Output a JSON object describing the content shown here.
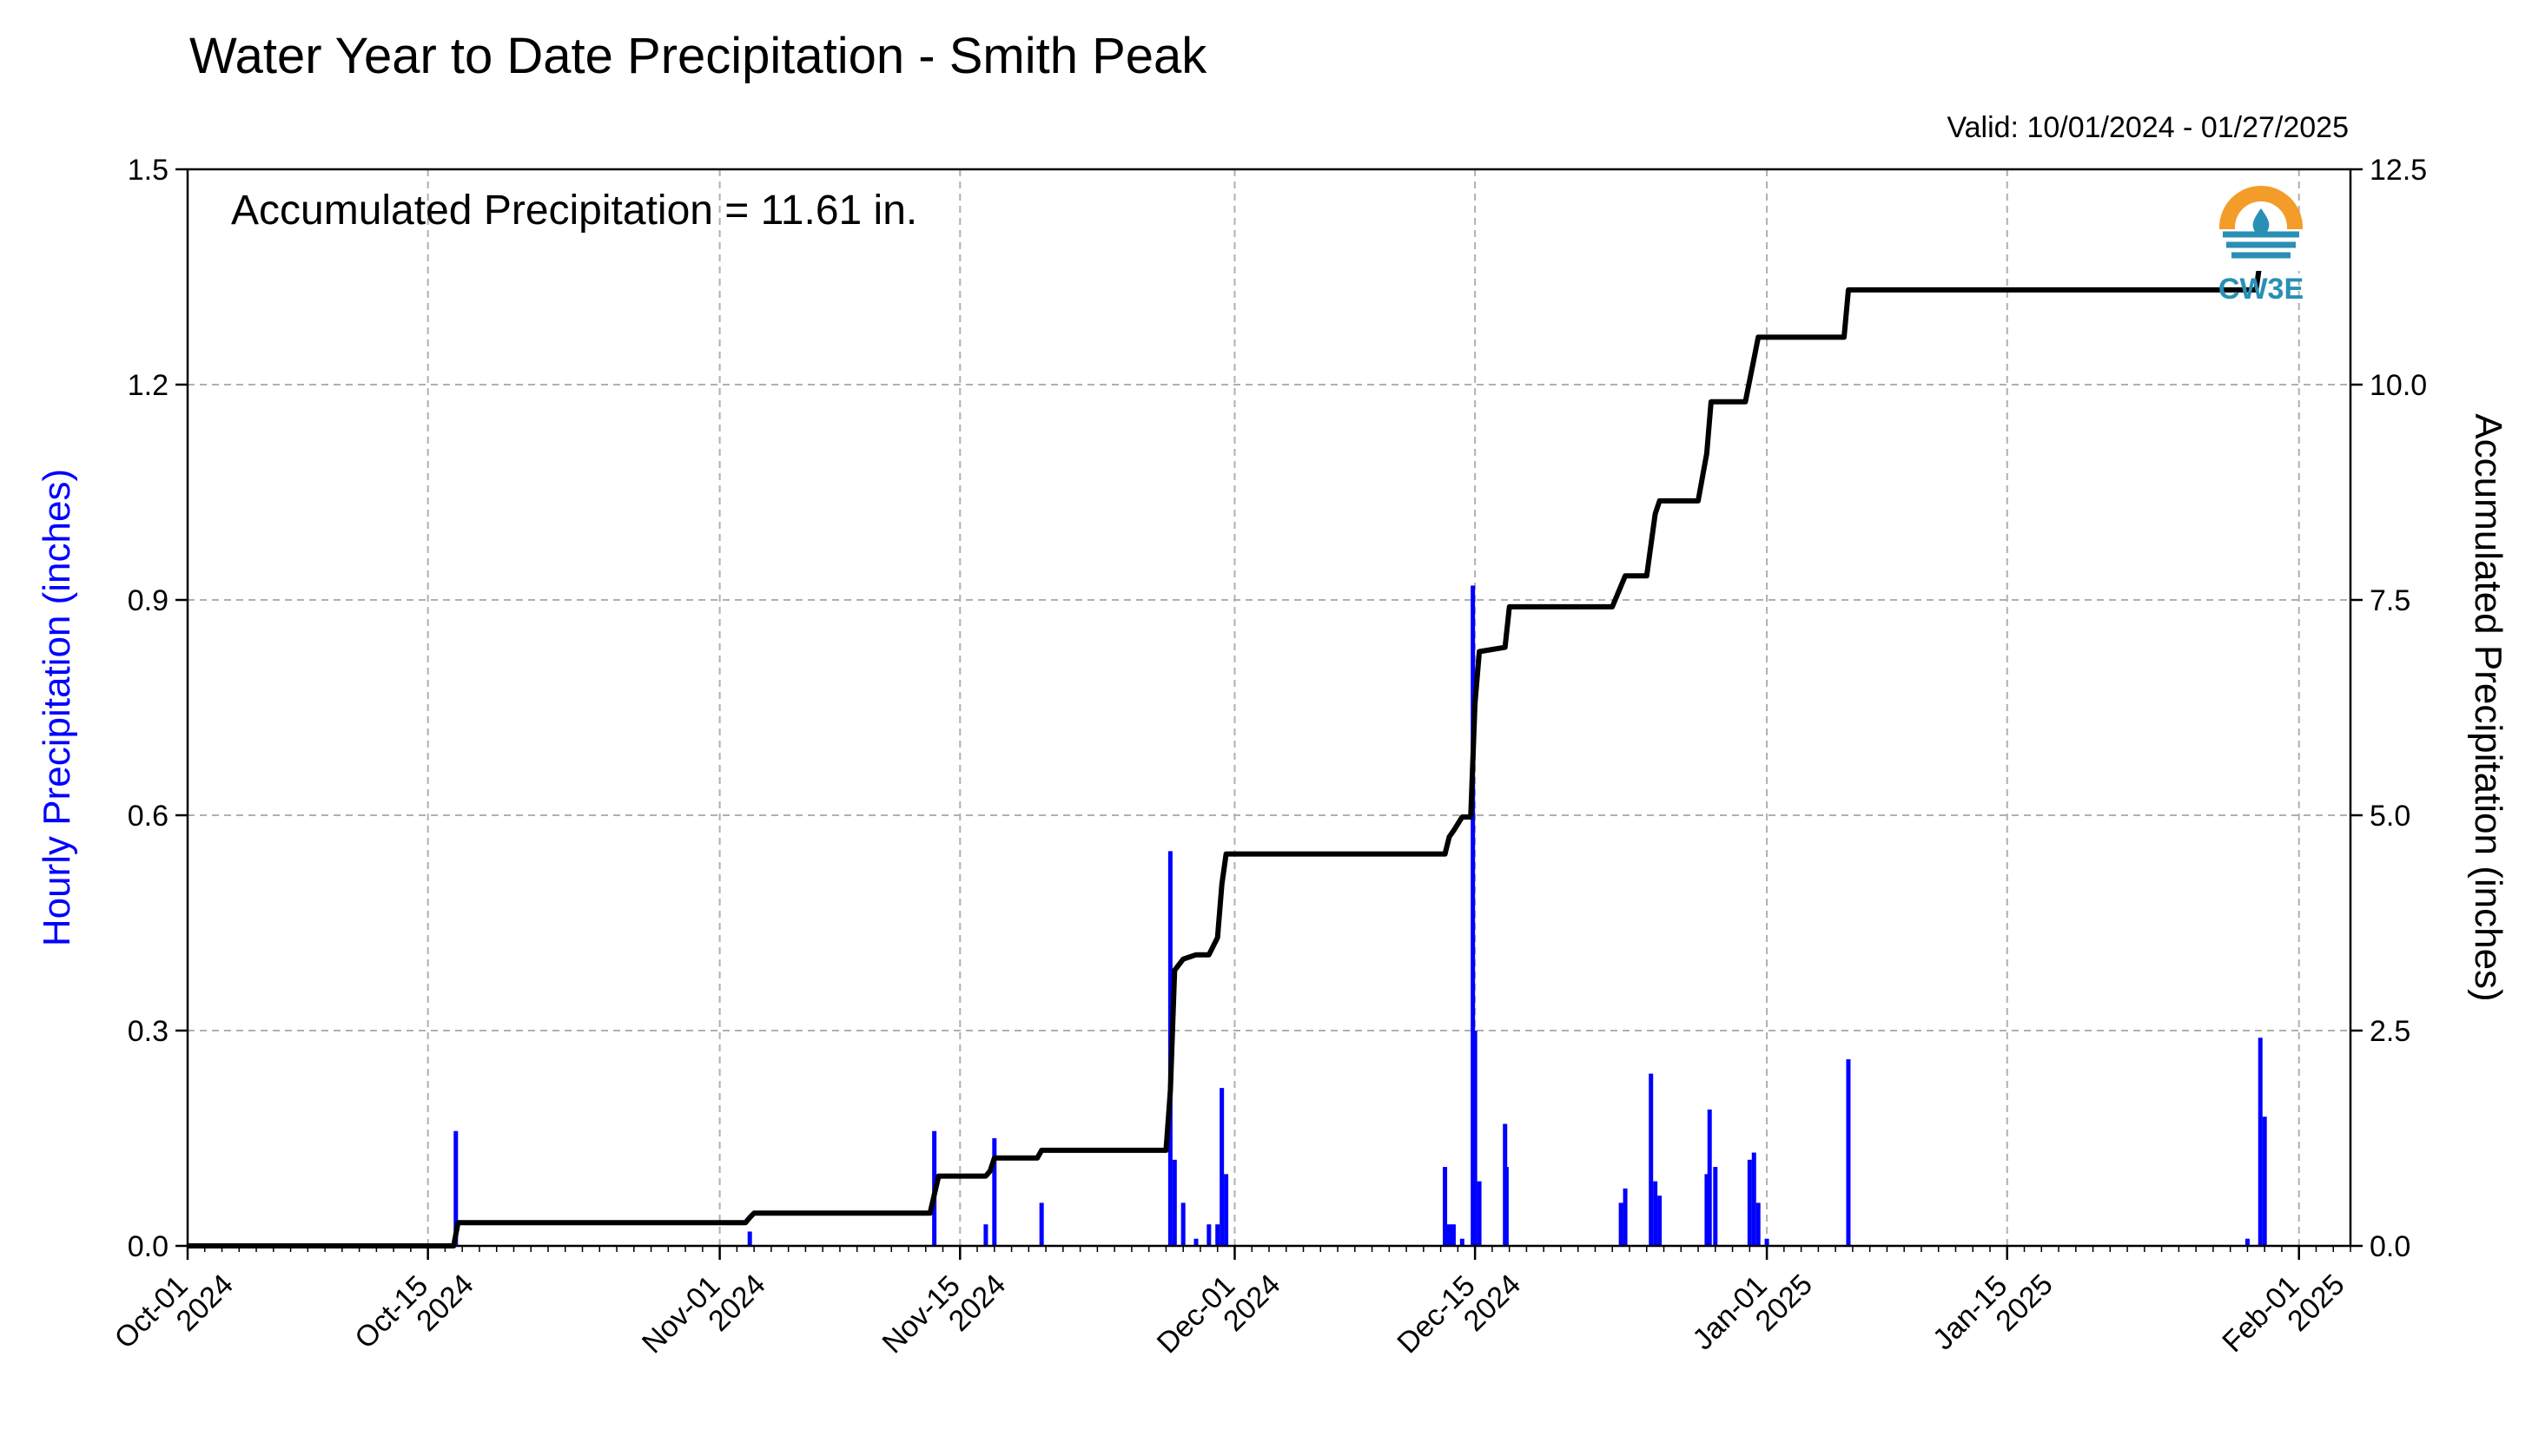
{
  "chart_data": {
    "type": "bar",
    "title": "Water Year to Date Precipitation - Smith Peak",
    "subtitle": "Valid: 10/01/2024 - 01/27/2025",
    "annotation": "Accumulated Precipitation = 11.61 in.",
    "logo_text": "CW3E",
    "ylabel": "Hourly Precipitation (inches)",
    "ylabel_right": "Accumulated Precipitation (inches)",
    "ylim": [
      0,
      1.5
    ],
    "ylim_right": [
      0,
      12.5
    ],
    "yticks": [
      "0.0",
      "0.3",
      "0.6",
      "0.9",
      "1.2",
      "1.5"
    ],
    "yticks_right": [
      "0.0",
      "2.5",
      "5.0",
      "7.5",
      "10.0",
      "12.5"
    ],
    "xlim": [
      "2024-10-01",
      "2025-02-04"
    ],
    "xticks": [
      {
        "date": "2024-10-01",
        "line1": "Oct-01",
        "line2": "2024"
      },
      {
        "date": "2024-10-15",
        "line1": "Oct-15",
        "line2": "2024"
      },
      {
        "date": "2024-11-01",
        "line1": "Nov-01",
        "line2": "2024"
      },
      {
        "date": "2024-11-15",
        "line1": "Nov-15",
        "line2": "2024"
      },
      {
        "date": "2024-12-01",
        "line1": "Dec-01",
        "line2": "2024"
      },
      {
        "date": "2024-12-15",
        "line1": "Dec-15",
        "line2": "2024"
      },
      {
        "date": "2025-01-01",
        "line1": "Jan-01",
        "line2": "2025"
      },
      {
        "date": "2025-01-15",
        "line1": "Jan-15",
        "line2": "2025"
      },
      {
        "date": "2025-02-01",
        "line1": "Feb-01",
        "line2": "2025"
      }
    ],
    "grid": true,
    "colors": {
      "hourly": "#0000ff",
      "accumulated": "#000000",
      "grid": "#b0b0b0",
      "logo_orange": "#f39c2a",
      "logo_blue": "#2a8fb5"
    },
    "series": [
      {
        "name": "Hourly Precipitation (inches)",
        "type": "bar",
        "points": [
          {
            "t": "2024-10-16 15:00",
            "v": 0.16
          },
          {
            "t": "2024-11-02 18:00",
            "v": 0.02
          },
          {
            "t": "2024-11-13 12:00",
            "v": 0.16
          },
          {
            "t": "2024-11-16 12:00",
            "v": 0.03
          },
          {
            "t": "2024-11-17 00:00",
            "v": 0.15
          },
          {
            "t": "2024-11-19 18:00",
            "v": 0.06
          },
          {
            "t": "2024-11-27 06:00",
            "v": 0.55
          },
          {
            "t": "2024-11-27 12:00",
            "v": 0.12
          },
          {
            "t": "2024-11-28 00:00",
            "v": 0.06
          },
          {
            "t": "2024-11-28 18:00",
            "v": 0.01
          },
          {
            "t": "2024-11-29 12:00",
            "v": 0.03
          },
          {
            "t": "2024-11-30 00:00",
            "v": 0.03
          },
          {
            "t": "2024-11-30 06:00",
            "v": 0.22
          },
          {
            "t": "2024-11-30 12:00",
            "v": 0.1
          },
          {
            "t": "2024-12-13 06:00",
            "v": 0.11
          },
          {
            "t": "2024-12-13 12:00",
            "v": 0.03
          },
          {
            "t": "2024-12-13 18:00",
            "v": 0.03
          },
          {
            "t": "2024-12-14 06:00",
            "v": 0.01
          },
          {
            "t": "2024-12-14 21:00",
            "v": 0.92
          },
          {
            "t": "2024-12-15 00:00",
            "v": 0.3
          },
          {
            "t": "2024-12-15 06:00",
            "v": 0.09
          },
          {
            "t": "2024-12-16 18:00",
            "v": 0.17
          },
          {
            "t": "2024-12-16 20:00",
            "v": 0.11
          },
          {
            "t": "2024-12-23 12:00",
            "v": 0.06
          },
          {
            "t": "2024-12-23 18:00",
            "v": 0.08
          },
          {
            "t": "2024-12-25 06:00",
            "v": 0.24
          },
          {
            "t": "2024-12-25 12:00",
            "v": 0.09
          },
          {
            "t": "2024-12-25 18:00",
            "v": 0.07
          },
          {
            "t": "2024-12-28 12:00",
            "v": 0.1
          },
          {
            "t": "2024-12-28 16:00",
            "v": 0.19
          },
          {
            "t": "2024-12-29 00:00",
            "v": 0.11
          },
          {
            "t": "2024-12-31 00:00",
            "v": 0.12
          },
          {
            "t": "2024-12-31 06:00",
            "v": 0.13
          },
          {
            "t": "2024-12-31 12:00",
            "v": 0.06
          },
          {
            "t": "2025-01-01 00:00",
            "v": 0.01
          },
          {
            "t": "2025-01-05 18:00",
            "v": 0.26
          },
          {
            "t": "2025-01-29 00:00",
            "v": 0.01
          },
          {
            "t": "2025-01-29 18:00",
            "v": 0.29
          },
          {
            "t": "2025-01-30 00:00",
            "v": 0.18
          }
        ]
      },
      {
        "name": "Accumulated Precipitation (inches)",
        "type": "step",
        "points": [
          {
            "t": "2024-10-01 00:00",
            "v": 0.0
          },
          {
            "t": "2024-10-16 12:00",
            "v": 0.0
          },
          {
            "t": "2024-10-16 18:00",
            "v": 0.27
          },
          {
            "t": "2024-11-02 12:00",
            "v": 0.27
          },
          {
            "t": "2024-11-02 18:00",
            "v": 0.33
          },
          {
            "t": "2024-11-03 00:00",
            "v": 0.38
          },
          {
            "t": "2024-11-13 06:00",
            "v": 0.38
          },
          {
            "t": "2024-11-13 18:00",
            "v": 0.81
          },
          {
            "t": "2024-11-16 12:00",
            "v": 0.81
          },
          {
            "t": "2024-11-16 18:00",
            "v": 0.87
          },
          {
            "t": "2024-11-17 00:00",
            "v": 1.02
          },
          {
            "t": "2024-11-19 12:00",
            "v": 1.02
          },
          {
            "t": "2024-11-19 18:00",
            "v": 1.11
          },
          {
            "t": "2024-11-27 00:00",
            "v": 1.11
          },
          {
            "t": "2024-11-27 06:00",
            "v": 1.8
          },
          {
            "t": "2024-11-27 12:00",
            "v": 3.2
          },
          {
            "t": "2024-11-28 00:00",
            "v": 3.33
          },
          {
            "t": "2024-11-28 18:00",
            "v": 3.38
          },
          {
            "t": "2024-11-29 12:00",
            "v": 3.38
          },
          {
            "t": "2024-11-30 00:00",
            "v": 3.58
          },
          {
            "t": "2024-11-30 06:00",
            "v": 4.2
          },
          {
            "t": "2024-11-30 12:00",
            "v": 4.55
          },
          {
            "t": "2024-12-13 06:00",
            "v": 4.55
          },
          {
            "t": "2024-12-13 12:00",
            "v": 4.75
          },
          {
            "t": "2024-12-13 18:00",
            "v": 4.82
          },
          {
            "t": "2024-12-14 06:00",
            "v": 4.98
          },
          {
            "t": "2024-12-14 18:00",
            "v": 4.98
          },
          {
            "t": "2024-12-15 00:00",
            "v": 6.3
          },
          {
            "t": "2024-12-15 06:00",
            "v": 6.9
          },
          {
            "t": "2024-12-16 18:00",
            "v": 6.95
          },
          {
            "t": "2024-12-17 00:00",
            "v": 7.42
          },
          {
            "t": "2024-12-23 00:00",
            "v": 7.42
          },
          {
            "t": "2024-12-23 18:00",
            "v": 7.78
          },
          {
            "t": "2024-12-25 00:00",
            "v": 7.78
          },
          {
            "t": "2024-12-25 12:00",
            "v": 8.5
          },
          {
            "t": "2024-12-25 18:00",
            "v": 8.65
          },
          {
            "t": "2024-12-28 00:00",
            "v": 8.65
          },
          {
            "t": "2024-12-28 12:00",
            "v": 9.2
          },
          {
            "t": "2024-12-28 18:00",
            "v": 9.8
          },
          {
            "t": "2024-12-30 18:00",
            "v": 9.8
          },
          {
            "t": "2024-12-31 06:00",
            "v": 10.3
          },
          {
            "t": "2024-12-31 12:00",
            "v": 10.55
          },
          {
            "t": "2025-01-05 12:00",
            "v": 10.55
          },
          {
            "t": "2025-01-05 18:00",
            "v": 11.1
          },
          {
            "t": "2025-01-29 12:00",
            "v": 11.1
          },
          {
            "t": "2025-01-29 18:00",
            "v": 11.45
          },
          {
            "t": "2025-01-30 00:00",
            "v": 11.61
          }
        ]
      }
    ]
  }
}
